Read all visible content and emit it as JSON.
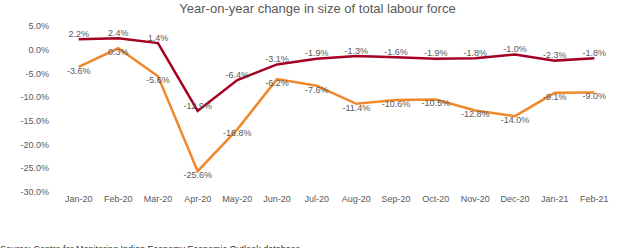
{
  "chart_data": {
    "type": "line",
    "title": "Year-on-year change in size of total labour force",
    "categories": [
      "Jan-20",
      "Feb-20",
      "Mar-20",
      "Apr-20",
      "May-20",
      "Jun-20",
      "Jul-20",
      "Aug-20",
      "Sep-20",
      "Oct-20",
      "Nov-20",
      "Dec-20",
      "Jan-21",
      "Feb-21"
    ],
    "series": [
      {
        "color": "#a50021",
        "values": [
          2.2,
          2.4,
          1.4,
          -12.9,
          -6.4,
          -3.1,
          -1.9,
          -1.3,
          -1.6,
          -1.9,
          -1.8,
          -1.0,
          -2.3,
          -1.8
        ],
        "value_labels": [
          "2.2%",
          "2.4%",
          "1.4%",
          "-12.9%",
          "-6.4%",
          "-3.1%",
          "-1.9%",
          "-1.3%",
          "-1.6%",
          "-1.9%",
          "-1.8%",
          "-1.0%",
          "-2.3%",
          "-1.8%"
        ]
      },
      {
        "color": "#f0882c",
        "values": [
          -3.6,
          0.3,
          -5.6,
          -25.6,
          -16.8,
          -6.2,
          -7.6,
          -11.4,
          -10.6,
          -10.5,
          -12.8,
          -14.0,
          -9.1,
          -9.0
        ],
        "value_labels": [
          "-3.6%",
          "0.3%",
          "-5.6%",
          "-25.6%",
          "-16.8%",
          "-6.2%",
          "-7.6%",
          "-11.4%",
          "-10.6%",
          "-10.5%",
          "-12.8%",
          "-14.0%",
          "-9.1%",
          "-9.0%"
        ]
      }
    ],
    "ylim": [
      -30,
      5
    ],
    "yticks": [
      {
        "value": 5,
        "label": "5.0%"
      },
      {
        "value": 0,
        "label": "0.0%"
      },
      {
        "value": -5,
        "label": "-5.0%"
      },
      {
        "value": -10,
        "label": "-10.0%"
      },
      {
        "value": -15,
        "label": "-15.0%"
      },
      {
        "value": -20,
        "label": "-20.0%"
      },
      {
        "value": -25,
        "label": "-25.0%"
      },
      {
        "value": -30,
        "label": "-30.0%"
      }
    ],
    "grid": false,
    "data_labels": true,
    "annotations": [
      "Source: Centre for Monitoring Indian Economy Economic Outlook database."
    ]
  }
}
